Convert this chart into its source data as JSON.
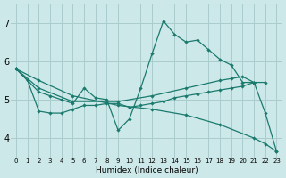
{
  "bg_color": "#cde8e8",
  "grid_color": "#aacccc",
  "line_color": "#1a7a6e",
  "xlim": [
    -0.5,
    23.5
  ],
  "ylim": [
    3.5,
    7.5
  ],
  "xticks": [
    0,
    1,
    2,
    3,
    4,
    5,
    6,
    7,
    8,
    9,
    10,
    11,
    12,
    13,
    14,
    15,
    16,
    17,
    18,
    19,
    20,
    21,
    22,
    23
  ],
  "yticks": [
    4,
    5,
    6,
    7
  ],
  "xlabel": "Humidex (Indice chaleur)",
  "lines": [
    {
      "x": [
        0,
        1,
        2,
        3,
        4,
        5,
        6,
        7,
        8,
        9,
        10,
        11,
        12,
        13,
        14,
        15,
        16,
        17,
        18,
        19,
        20,
        21,
        22,
        23
      ],
      "y": [
        5.8,
        5.5,
        5.2,
        5.1,
        5.0,
        4.9,
        5.3,
        5.05,
        5.0,
        4.2,
        4.5,
        5.3,
        6.2,
        7.05,
        6.7,
        6.5,
        6.55,
        6.3,
        6.05,
        5.9,
        5.45,
        5.45,
        4.65,
        3.65
      ]
    },
    {
      "x": [
        0,
        2,
        5,
        9,
        12,
        15,
        18,
        21,
        22,
        23
      ],
      "y": [
        5.8,
        5.5,
        5.1,
        4.85,
        4.75,
        4.6,
        4.35,
        4.0,
        3.85,
        3.65
      ]
    },
    {
      "x": [
        0,
        2,
        5,
        9,
        12,
        15,
        18,
        19,
        20,
        21,
        22
      ],
      "y": [
        5.8,
        5.3,
        4.95,
        4.95,
        5.1,
        5.3,
        5.5,
        5.55,
        5.6,
        5.45,
        5.45
      ]
    },
    {
      "x": [
        0,
        1,
        2,
        3,
        4,
        5,
        6,
        7,
        8,
        9,
        10,
        11,
        12,
        13,
        14,
        15,
        16,
        17,
        18,
        19,
        20,
        21
      ],
      "y": [
        5.8,
        5.5,
        4.7,
        4.65,
        4.65,
        4.75,
        4.85,
        4.85,
        4.9,
        4.9,
        4.8,
        4.85,
        4.9,
        4.95,
        5.05,
        5.1,
        5.15,
        5.2,
        5.25,
        5.3,
        5.35,
        5.45
      ]
    }
  ]
}
